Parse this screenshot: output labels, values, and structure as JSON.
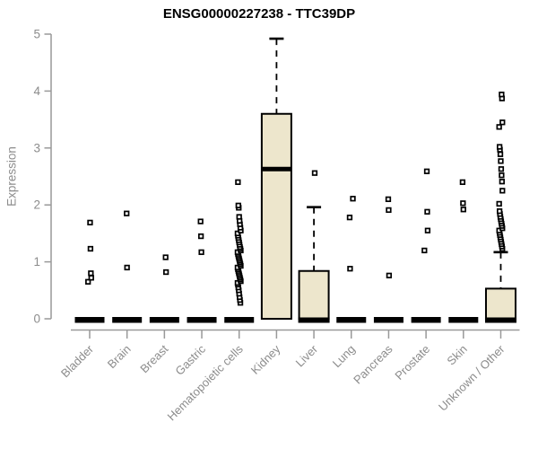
{
  "chart_data": {
    "type": "boxplot",
    "title": "ENSG00000227238 - TTC39DP",
    "xlabel": "",
    "ylabel": "Expression",
    "ylim": [
      0,
      5
    ],
    "yticks": [
      "0",
      "1",
      "2",
      "3",
      "4",
      "5"
    ],
    "grid": false,
    "legend": "none",
    "categories": [
      "Bladder",
      "Brain",
      "Breast",
      "Gastric",
      "Hematopoietic cells",
      "Kidney",
      "Liver",
      "Lung",
      "Pancreas",
      "Prostate",
      "Skin",
      "Unknown / Other"
    ],
    "series": [
      {
        "category": "Bladder",
        "q1": 0,
        "median": 0,
        "q3": 0,
        "whisker_low": 0,
        "whisker_high": 0,
        "outliers": [
          0.65,
          0.72,
          0.8,
          1.23,
          1.69
        ]
      },
      {
        "category": "Brain",
        "q1": 0,
        "median": 0,
        "q3": 0,
        "whisker_low": 0,
        "whisker_high": 0,
        "outliers": [
          0.9,
          1.85
        ]
      },
      {
        "category": "Breast",
        "q1": 0,
        "median": 0,
        "q3": 0,
        "whisker_low": 0,
        "whisker_high": 0,
        "outliers": [
          0.82,
          1.08
        ]
      },
      {
        "category": "Gastric",
        "q1": 0,
        "median": 0,
        "q3": 0,
        "whisker_low": 0,
        "whisker_high": 0,
        "outliers": [
          1.17,
          1.45,
          1.71
        ]
      },
      {
        "category": "Hematopoietic cells",
        "q1": 0,
        "median": 0,
        "q3": 0,
        "whisker_low": 0,
        "whisker_high": 0,
        "outliers": [
          0.28,
          0.33,
          0.38,
          0.44,
          0.5,
          0.55,
          0.6,
          0.63,
          0.66,
          0.69,
          0.72,
          0.75,
          0.78,
          0.81,
          0.84,
          0.87,
          0.9,
          0.93,
          0.96,
          0.99,
          1.02,
          1.05,
          1.08,
          1.11,
          1.14,
          1.17,
          1.2,
          1.23,
          1.26,
          1.3,
          1.34,
          1.38,
          1.42,
          1.46,
          1.5,
          1.55,
          1.6,
          1.66,
          1.72,
          1.79,
          1.95,
          1.99,
          2.4
        ]
      },
      {
        "category": "Kidney",
        "q1": 0,
        "median": 2.63,
        "q3": 3.6,
        "whisker_low": 0,
        "whisker_high": 4.92,
        "outliers": []
      },
      {
        "category": "Liver",
        "q1": 0,
        "median": 0,
        "q3": 0.84,
        "whisker_low": 0,
        "whisker_high": 1.96,
        "outliers": [
          2.56
        ]
      },
      {
        "category": "Lung",
        "q1": 0,
        "median": 0,
        "q3": 0,
        "whisker_low": 0,
        "whisker_high": 0,
        "outliers": [
          0.88,
          1.78,
          2.11
        ]
      },
      {
        "category": "Pancreas",
        "q1": 0,
        "median": 0,
        "q3": 0,
        "whisker_low": 0,
        "whisker_high": 0,
        "outliers": [
          0.76,
          1.91,
          2.1
        ]
      },
      {
        "category": "Prostate",
        "q1": 0,
        "median": 0,
        "q3": 0,
        "whisker_low": 0,
        "whisker_high": 0,
        "outliers": [
          1.2,
          1.55,
          1.88,
          2.59
        ]
      },
      {
        "category": "Skin",
        "q1": 0,
        "median": 0,
        "q3": 0,
        "whisker_low": 0,
        "whisker_high": 0,
        "outliers": [
          1.92,
          2.03,
          2.4
        ]
      },
      {
        "category": "Unknown / Other",
        "q1": 0,
        "median": 0,
        "q3": 0.53,
        "whisker_low": 0,
        "whisker_high": 1.17,
        "outliers": [
          1.23,
          1.27,
          1.31,
          1.35,
          1.39,
          1.43,
          1.47,
          1.51,
          1.55,
          1.59,
          1.63,
          1.67,
          1.71,
          1.75,
          1.79,
          1.84,
          1.89,
          2.02,
          2.25,
          2.41,
          2.52,
          2.63,
          2.77,
          2.89,
          2.97,
          3.02,
          3.37,
          3.45,
          3.87,
          3.94
        ]
      }
    ],
    "colors": {
      "box_fill": "#EDE6CC",
      "box_stroke": "#000000",
      "median": "#000000",
      "outlier": "#000000",
      "axis": "#999999",
      "tick_label": "#8C8C8C",
      "title": "#000000",
      "background": "#FFFFFF"
    }
  }
}
